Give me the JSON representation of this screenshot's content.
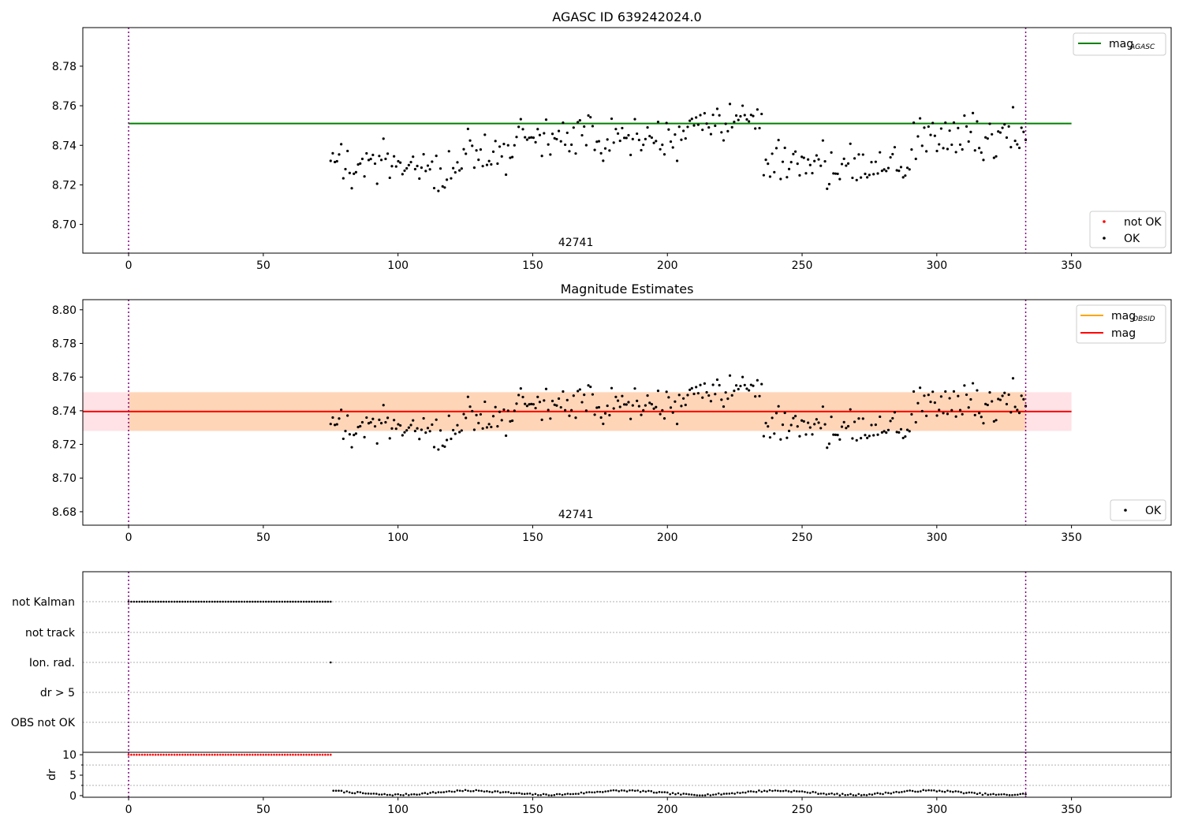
{
  "chart_data": [
    {
      "type": "scatter",
      "title": "AGASC ID 639242024.0",
      "xlim": [
        -17,
        387
      ],
      "ylim": [
        8.6855,
        8.7995
      ],
      "xticks": [
        0,
        50,
        100,
        150,
        200,
        250,
        300,
        350
      ],
      "yticks": [
        8.7,
        8.72,
        8.74,
        8.76,
        8.78
      ],
      "ytick_labels": [
        "8.70",
        "8.72",
        "8.74",
        "8.76",
        "8.78"
      ],
      "vlines": [
        0,
        333
      ],
      "annotations": [
        {
          "text": "42741",
          "x": 166
        }
      ],
      "hlines": [
        {
          "label": "mag",
          "label_sub": "AGASC",
          "y": 8.751,
          "x0": 0,
          "x1": 350,
          "color": "#008000"
        }
      ],
      "legend_lines": [
        {
          "label": "mag",
          "sub": "AGASC",
          "color": "#008000"
        }
      ],
      "legend_points": [
        {
          "label": "not OK",
          "color": "#ff0000"
        },
        {
          "label": "OK",
          "color": "#000000"
        }
      ],
      "series": [
        {
          "name": "OK",
          "color": "#000000",
          "x_start": 75,
          "x_end": 333,
          "n": 330
        }
      ]
    },
    {
      "type": "scatter",
      "title": "Magnitude Estimates",
      "xlim": [
        -17,
        387
      ],
      "ylim": [
        8.672,
        8.806
      ],
      "xticks": [
        0,
        50,
        100,
        150,
        200,
        250,
        300,
        350
      ],
      "yticks": [
        8.68,
        8.7,
        8.72,
        8.74,
        8.76,
        8.78,
        8.8
      ],
      "ytick_labels": [
        "8.68",
        "8.70",
        "8.72",
        "8.74",
        "8.76",
        "8.78",
        "8.80"
      ],
      "vlines": [
        0,
        333
      ],
      "annotations": [
        {
          "text": "42741",
          "x": 166
        }
      ],
      "bands": [
        {
          "x0": -17,
          "x1": 350,
          "y0": 8.728,
          "y1": 8.751,
          "color": "#ffb6c1",
          "opacity": 0.4
        },
        {
          "x0": 0,
          "x1": 333,
          "y0": 8.728,
          "y1": 8.751,
          "color": "#ffa500",
          "opacity": 0.2
        }
      ],
      "hlines": [
        {
          "label": "mag",
          "label_sub": "OBSID",
          "y": 8.7395,
          "x0": 0,
          "x1": 333,
          "color": "#ffa500"
        },
        {
          "label": "mag",
          "y": 8.7395,
          "x0": -17,
          "x1": 350,
          "color": "#ff0000"
        }
      ],
      "legend_lines": [
        {
          "label": "mag",
          "sub": "OBSID",
          "color": "#ffa500"
        },
        {
          "label": "mag",
          "sub": "",
          "color": "#ff0000"
        }
      ],
      "legend_points": [
        {
          "label": "OK",
          "color": "#000000"
        }
      ],
      "series": [
        {
          "name": "OK",
          "color": "#000000",
          "x_start": 75,
          "x_end": 333,
          "n": 330
        }
      ]
    },
    {
      "type": "scatter",
      "title": "",
      "xlim": [
        -17,
        387
      ],
      "categories": [
        "not Kalman",
        "not track",
        "Ion. rad.",
        "dr > 5",
        "OBS not OK"
      ],
      "flags": [
        {
          "category": "not Kalman",
          "x_start": 0,
          "x_end": 75,
          "step": 1
        },
        {
          "category": "Ion. rad.",
          "x": [
            75
          ]
        }
      ]
    },
    {
      "type": "scatter",
      "title": "",
      "ylabel": "dr",
      "xlim": [
        -17,
        387
      ],
      "ylim": [
        -0.4,
        10.6
      ],
      "xticks": [
        0,
        50,
        100,
        150,
        200,
        250,
        300,
        350
      ],
      "yticks": [
        0,
        5,
        10
      ],
      "ytick_labels": [
        "0",
        "5",
        "10"
      ],
      "series": [
        {
          "name": "not OK",
          "color": "#ff0000",
          "x_start": 0,
          "x_end": 75,
          "value": 10
        },
        {
          "name": "OK",
          "color": "#000000",
          "x_start": 75,
          "x_end": 333,
          "baseline": 0.7
        }
      ]
    }
  ]
}
